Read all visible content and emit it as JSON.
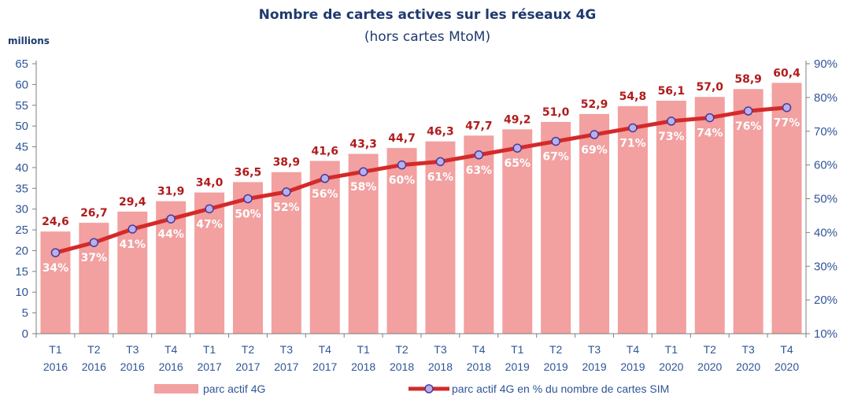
{
  "chart_data": {
    "type": "bar+line",
    "title": "Nombre de cartes actives sur les réseaux  4G",
    "subtitle": "(hors cartes MtoM)",
    "ylabel": "millions",
    "ylim": [
      0,
      65
    ],
    "y2lim": [
      10,
      90
    ],
    "yticks": [
      "0",
      "5",
      "10",
      "15",
      "20",
      "25",
      "30",
      "35",
      "40",
      "45",
      "50",
      "55",
      "60",
      "65"
    ],
    "y2ticks": [
      "10%",
      "20%",
      "30%",
      "40%",
      "50%",
      "60%",
      "70%",
      "80%",
      "90%"
    ],
    "categories": [
      [
        "T1",
        "2016"
      ],
      [
        "T2",
        "2016"
      ],
      [
        "T3",
        "2016"
      ],
      [
        "T4",
        "2016"
      ],
      [
        "T1",
        "2017"
      ],
      [
        "T2",
        "2017"
      ],
      [
        "T3",
        "2017"
      ],
      [
        "T4",
        "2017"
      ],
      [
        "T1",
        "2018"
      ],
      [
        "T2",
        "2018"
      ],
      [
        "T3",
        "2018"
      ],
      [
        "T4",
        "2018"
      ],
      [
        "T1",
        "2019"
      ],
      [
        "T2",
        "2019"
      ],
      [
        "T3",
        "2019"
      ],
      [
        "T4",
        "2019"
      ],
      [
        "T1",
        "2020"
      ],
      [
        "T2",
        "2020"
      ],
      [
        "T3",
        "2020"
      ],
      [
        "T4",
        "2020"
      ]
    ],
    "series": [
      {
        "name": "parc actif 4G",
        "type": "bar",
        "axis": "left",
        "color": "#f2a0a0",
        "values": [
          24.6,
          26.7,
          29.4,
          31.9,
          34.0,
          36.5,
          38.9,
          41.6,
          43.3,
          44.7,
          46.3,
          47.7,
          49.2,
          51.0,
          52.9,
          54.8,
          56.1,
          57.0,
          58.9,
          60.4
        ],
        "labels": [
          "24,6",
          "26,7",
          "29,4",
          "31,9",
          "34,0",
          "36,5",
          "38,9",
          "41,6",
          "43,3",
          "44,7",
          "46,3",
          "47,7",
          "49,2",
          "51,0",
          "52,9",
          "54,8",
          "56,1",
          "57,0",
          "58,9",
          "60,4"
        ]
      },
      {
        "name": "parc actif 4G en % du nombre de cartes SIM",
        "type": "line",
        "axis": "right",
        "color": "#d42a2a",
        "marker_color": "#b8b0e8",
        "values": [
          34,
          37,
          41,
          44,
          47,
          50,
          52,
          56,
          58,
          60,
          61,
          63,
          65,
          67,
          69,
          71,
          73,
          74,
          76,
          77
        ],
        "labels": [
          "34%",
          "37%",
          "41%",
          "44%",
          "47%",
          "50%",
          "52%",
          "56%",
          "58%",
          "60%",
          "61%",
          "63%",
          "65%",
          "67%",
          "69%",
          "71%",
          "73%",
          "74%",
          "76%",
          "77%"
        ]
      }
    ],
    "legend_position": "bottom"
  }
}
